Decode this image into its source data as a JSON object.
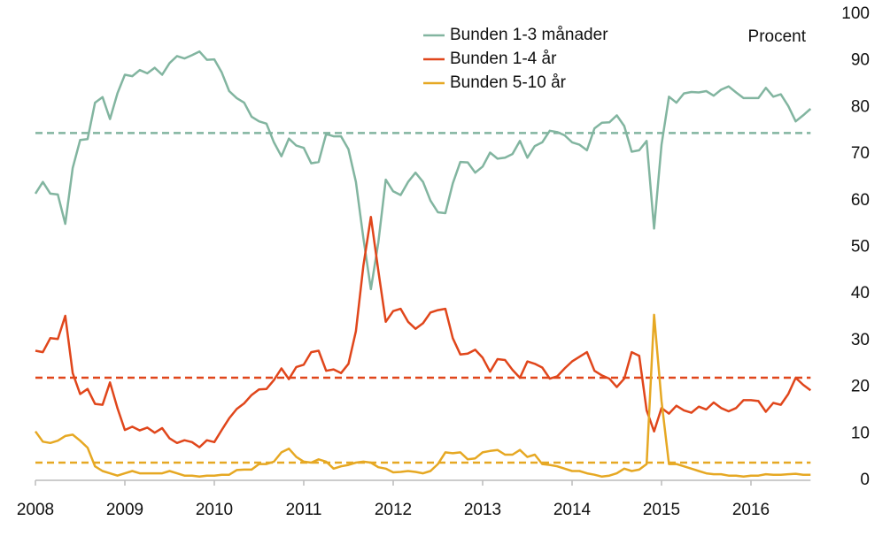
{
  "chart_data": {
    "type": "line",
    "annotations": [
      "Procent"
    ],
    "categories": [
      "2008",
      null,
      null,
      null,
      null,
      null,
      null,
      null,
      null,
      null,
      null,
      null,
      "2009",
      null,
      null,
      null,
      null,
      null,
      null,
      null,
      null,
      null,
      null,
      null,
      "2010",
      null,
      null,
      null,
      null,
      null,
      null,
      null,
      null,
      null,
      null,
      null,
      "2011",
      null,
      null,
      null,
      null,
      null,
      null,
      null,
      null,
      null,
      null,
      null,
      "2012",
      null,
      null,
      null,
      null,
      null,
      null,
      null,
      null,
      null,
      null,
      null,
      "2013",
      null,
      null,
      null,
      null,
      null,
      null,
      null,
      null,
      null,
      null,
      null,
      "2014",
      null,
      null,
      null,
      null,
      null,
      null,
      null,
      null,
      null,
      null,
      null,
      "2015",
      null,
      null,
      null,
      null,
      null,
      null,
      null,
      null,
      null,
      null,
      null,
      "2016",
      null,
      null,
      null,
      null,
      null,
      null,
      null,
      null
    ],
    "series": [
      {
        "name": "Bunden 1-3 månader",
        "color": "#82b5a0",
        "values": [
          61.5,
          64,
          61.5,
          61.3,
          55,
          67,
          73,
          73.2,
          81,
          82.2,
          77.5,
          83,
          87,
          86.7,
          88,
          87.3,
          88.5,
          87,
          89.5,
          91,
          90.5,
          91.2,
          92,
          90.2,
          90.3,
          87.5,
          83.5,
          82,
          81,
          78,
          77,
          76.5,
          72.5,
          69.5,
          73.3,
          71.8,
          71.3,
          68,
          68.3,
          74.3,
          73.8,
          73.8,
          71,
          64,
          52,
          41,
          51,
          64.5,
          62,
          61.2,
          64,
          66,
          64,
          60,
          57.5,
          57.3,
          63.7,
          68.3,
          68.2,
          66,
          67.3,
          70.3,
          69,
          69.2,
          70,
          72.8,
          69.2,
          71.7,
          72.5,
          75,
          74.7,
          74,
          72.5,
          72,
          70.8,
          75.5,
          76.7,
          76.8,
          78.3,
          76,
          70.5,
          70.8,
          72.8,
          54,
          72,
          82.3,
          81,
          83,
          83.3,
          83.2,
          83.5,
          82.5,
          83.8,
          84.5,
          83.2,
          82,
          82,
          82,
          84.2,
          82.3,
          82.8,
          80.3,
          77,
          78.3,
          79.7
        ]
      },
      {
        "name": "Bunden 1-4 år",
        "color": "#e0461b",
        "values": [
          27.8,
          27.5,
          30.5,
          30.3,
          35.3,
          23,
          18.5,
          19.6,
          16.4,
          16.2,
          21,
          15.5,
          10.8,
          11.5,
          10.7,
          11.3,
          10.2,
          11.2,
          9,
          8,
          8.6,
          8.2,
          7.1,
          8.6,
          8.2,
          10.8,
          13.3,
          15.3,
          16.5,
          18.3,
          19.5,
          19.6,
          21.5,
          24,
          21.7,
          24.3,
          24.8,
          27.5,
          27.8,
          23.5,
          23.8,
          23,
          25,
          32,
          46,
          56.5,
          45,
          34,
          36.3,
          36.8,
          34,
          32.5,
          33.7,
          36,
          36.5,
          36.8,
          30.5,
          27,
          27.2,
          28,
          26.3,
          23.3,
          26,
          25.8,
          23.7,
          22,
          25.5,
          25,
          24.2,
          21.8,
          22.3,
          24,
          25.5,
          26.5,
          27.5,
          23.5,
          22.5,
          21.8,
          20,
          21.8,
          27.5,
          26.7,
          15,
          10.5,
          15.5,
          14.3,
          16,
          15,
          14.5,
          15.8,
          15.2,
          16.7,
          15.5,
          14.8,
          15.5,
          17.2,
          17.2,
          17,
          14.7,
          16.6,
          16.2,
          18.5,
          22,
          20.5,
          19.3
        ]
      },
      {
        "name": "Bunden 5-10 år",
        "color": "#e6a823",
        "values": [
          10.5,
          8.3,
          8,
          8.5,
          9.5,
          9.8,
          8.5,
          7,
          3,
          2,
          1.5,
          1,
          1.5,
          2,
          1.5,
          1.5,
          1.5,
          1.5,
          2,
          1.5,
          1,
          1,
          0.8,
          1,
          1,
          1.2,
          1.2,
          2.2,
          2.3,
          2.3,
          3.5,
          3.5,
          4,
          6,
          6.8,
          5,
          4,
          3.8,
          4.5,
          4,
          2.5,
          3,
          3.3,
          3.8,
          4,
          3.8,
          2.8,
          2.5,
          1.7,
          1.8,
          2,
          1.8,
          1.5,
          2,
          3.5,
          6,
          5.8,
          6,
          4.5,
          4.7,
          6,
          6.3,
          6.5,
          5.5,
          5.5,
          6.5,
          5,
          5.5,
          3.5,
          3.3,
          3,
          2.5,
          2,
          2,
          1.5,
          1.2,
          0.8,
          1,
          1.5,
          2.5,
          2,
          2.3,
          3.5,
          35.5,
          17,
          3.5,
          3.5,
          3,
          2.5,
          2,
          1.5,
          1.3,
          1.3,
          1,
          1,
          0.8,
          1,
          1,
          1.3,
          1.2,
          1.2,
          1.3,
          1.4,
          1.2,
          1.2
        ]
      }
    ],
    "averages": [
      {
        "value": 74.5,
        "color": "#82b5a0"
      },
      {
        "value": 22,
        "color": "#e0461b"
      },
      {
        "value": 3.8,
        "color": "#e6a823"
      }
    ],
    "ylim": [
      0,
      100
    ],
    "yticks": [
      0,
      10,
      20,
      30,
      40,
      50,
      60,
      70,
      80,
      90,
      100
    ],
    "y_axis_side": "right",
    "legend": "top"
  }
}
